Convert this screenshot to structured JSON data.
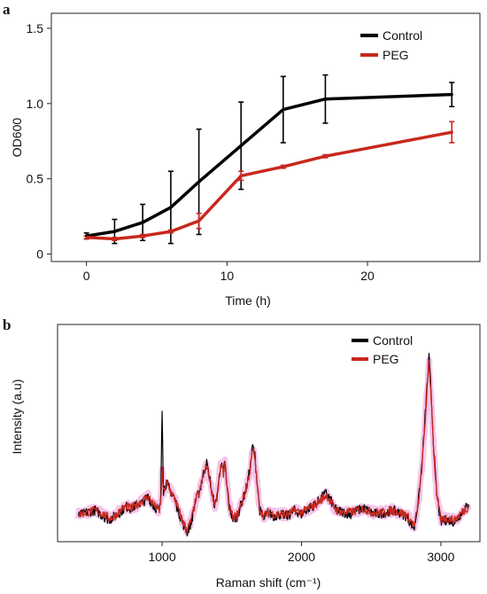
{
  "panels": [
    {
      "letter": "a",
      "legend": [
        "Control",
        "PEG"
      ]
    },
    {
      "letter": "b",
      "legend": [
        "Control",
        "PEG"
      ]
    }
  ],
  "chart_data": [
    {
      "type": "line",
      "xlabel": "Time (h)",
      "ylabel": "OD600",
      "xlim": [
        -2.5,
        28
      ],
      "ylim": [
        -0.05,
        1.6
      ],
      "xticks": [
        0,
        10,
        20
      ],
      "yticks": [
        0,
        0.5,
        1.0,
        1.5
      ],
      "ytick_labels": [
        "0",
        "0.5",
        "1.0",
        "1.5"
      ],
      "grid": false,
      "legend_position": "top-right",
      "series": [
        {
          "name": "Control",
          "color": "#000000",
          "x": [
            0,
            2,
            4,
            6,
            8,
            11,
            14,
            17,
            26
          ],
          "y": [
            0.12,
            0.15,
            0.21,
            0.31,
            0.48,
            0.72,
            0.96,
            1.03,
            1.06
          ],
          "error": [
            0.02,
            0.08,
            0.12,
            0.24,
            0.35,
            0.29,
            0.22,
            0.16,
            0.08
          ]
        },
        {
          "name": "PEG",
          "color": "#c8281e",
          "x": [
            0,
            2,
            4,
            6,
            8,
            11,
            14,
            17,
            26
          ],
          "y": [
            0.11,
            0.1,
            0.12,
            0.15,
            0.22,
            0.52,
            0.58,
            0.65,
            0.81
          ],
          "error": [
            0.01,
            0.01,
            0.01,
            0.01,
            0.05,
            0.03,
            0.01,
            0.01,
            0.07
          ]
        }
      ]
    },
    {
      "type": "line",
      "xlabel": "Raman shift (cm⁻¹)",
      "ylabel": "Intensity (a.u)",
      "xlim": [
        250,
        3280
      ],
      "ylim": [
        -0.06,
        1.05
      ],
      "xticks": [
        1000,
        2000,
        3000
      ],
      "yticks": [],
      "grid": false,
      "legend_position": "top-right",
      "series": [
        {
          "name": "Control",
          "color": "#000000",
          "x": [
            400,
            460,
            520,
            580,
            620,
            660,
            700,
            740,
            780,
            820,
            860,
            900,
            940,
            980,
            990,
            1000,
            1010,
            1030,
            1060,
            1090,
            1120,
            1150,
            1180,
            1210,
            1240,
            1270,
            1300,
            1320,
            1340,
            1360,
            1380,
            1400,
            1420,
            1440,
            1450,
            1460,
            1480,
            1510,
            1540,
            1570,
            1600,
            1630,
            1650,
            1665,
            1680,
            1700,
            1730,
            1760,
            1800,
            1850,
            1900,
            1950,
            2000,
            2050,
            2100,
            2150,
            2180,
            2210,
            2250,
            2300,
            2350,
            2400,
            2450,
            2500,
            2550,
            2600,
            2650,
            2700,
            2750,
            2790,
            2810,
            2840,
            2860,
            2880,
            2900,
            2915,
            2930,
            2950,
            2970,
            3000,
            3030,
            3060,
            3100,
            3150,
            3200
          ],
          "y": [
            0.07,
            0.09,
            0.1,
            0.07,
            0.05,
            0.07,
            0.09,
            0.12,
            0.11,
            0.13,
            0.14,
            0.17,
            0.12,
            0.1,
            0.15,
            0.63,
            0.2,
            0.24,
            0.2,
            0.16,
            0.09,
            0.03,
            -0.01,
            0.04,
            0.15,
            0.2,
            0.3,
            0.34,
            0.27,
            0.18,
            0.12,
            0.2,
            0.34,
            0.29,
            0.36,
            0.26,
            0.12,
            0.05,
            0.07,
            0.14,
            0.2,
            0.31,
            0.43,
            0.38,
            0.26,
            0.1,
            0.06,
            0.09,
            0.07,
            0.08,
            0.07,
            0.1,
            0.08,
            0.11,
            0.13,
            0.17,
            0.19,
            0.15,
            0.1,
            0.09,
            0.08,
            0.1,
            0.11,
            0.09,
            0.08,
            0.09,
            0.1,
            0.09,
            0.07,
            0.03,
            0.01,
            0.16,
            0.3,
            0.5,
            0.73,
            0.88,
            0.7,
            0.4,
            0.18,
            0.04,
            0.05,
            0.05,
            0.04,
            0.09,
            0.13
          ]
        },
        {
          "name": "PEG",
          "color": "#c8281e",
          "x": [
            400,
            460,
            520,
            580,
            620,
            660,
            700,
            740,
            780,
            820,
            860,
            900,
            940,
            980,
            990,
            1000,
            1010,
            1030,
            1060,
            1090,
            1120,
            1150,
            1180,
            1210,
            1240,
            1270,
            1300,
            1320,
            1340,
            1360,
            1380,
            1400,
            1420,
            1440,
            1450,
            1460,
            1480,
            1510,
            1540,
            1570,
            1600,
            1630,
            1650,
            1665,
            1680,
            1700,
            1730,
            1760,
            1800,
            1850,
            1900,
            1950,
            2000,
            2050,
            2100,
            2150,
            2180,
            2210,
            2250,
            2300,
            2350,
            2400,
            2450,
            2500,
            2550,
            2600,
            2650,
            2700,
            2750,
            2790,
            2810,
            2840,
            2860,
            2880,
            2900,
            2915,
            2930,
            2950,
            2970,
            3000,
            3030,
            3060,
            3100,
            3150,
            3200
          ],
          "y": [
            0.08,
            0.09,
            0.1,
            0.08,
            0.06,
            0.07,
            0.1,
            0.12,
            0.11,
            0.13,
            0.15,
            0.17,
            0.13,
            0.1,
            0.14,
            0.3,
            0.19,
            0.24,
            0.2,
            0.16,
            0.1,
            0.04,
            0.0,
            0.05,
            0.15,
            0.2,
            0.29,
            0.33,
            0.27,
            0.18,
            0.13,
            0.2,
            0.33,
            0.29,
            0.35,
            0.26,
            0.13,
            0.06,
            0.08,
            0.14,
            0.2,
            0.3,
            0.41,
            0.37,
            0.25,
            0.11,
            0.07,
            0.09,
            0.08,
            0.08,
            0.08,
            0.1,
            0.09,
            0.11,
            0.13,
            0.16,
            0.18,
            0.14,
            0.1,
            0.09,
            0.09,
            0.1,
            0.11,
            0.09,
            0.09,
            0.09,
            0.1,
            0.09,
            0.08,
            0.04,
            0.02,
            0.15,
            0.28,
            0.48,
            0.7,
            0.86,
            0.68,
            0.39,
            0.18,
            0.05,
            0.06,
            0.06,
            0.05,
            0.09,
            0.12
          ]
        }
      ]
    }
  ]
}
